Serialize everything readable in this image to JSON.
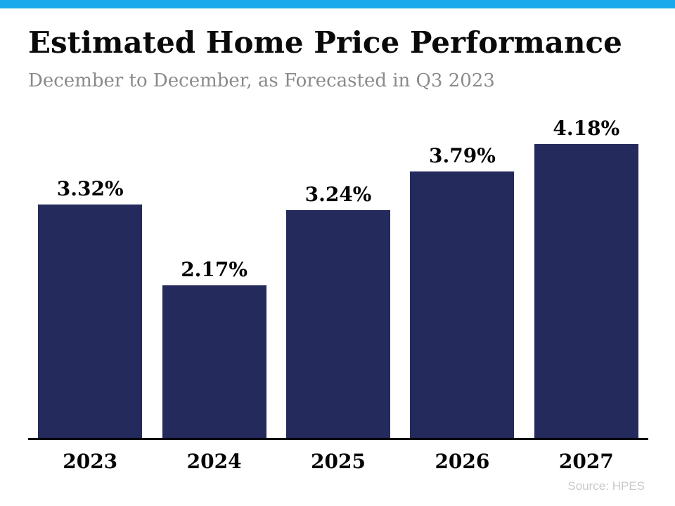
{
  "accent_color": "#18A9EC",
  "header": {
    "title": "Estimated Home Price Performance",
    "subtitle": "December to December, as Forecasted in Q3 2023"
  },
  "footer": {
    "source": "Source: HPES"
  },
  "chart_data": {
    "type": "bar",
    "title": "Estimated Home Price Performance",
    "subtitle": "December to December, as Forecasted in Q3 2023",
    "categories": [
      "2023",
      "2024",
      "2025",
      "2026",
      "2027"
    ],
    "values": [
      3.32,
      2.17,
      3.24,
      3.79,
      4.18
    ],
    "value_labels": [
      "3.32%",
      "2.17%",
      "3.24%",
      "3.79%",
      "4.18%"
    ],
    "xlabel": "",
    "ylabel": "",
    "ylim": [
      0,
      4.6
    ],
    "bar_color": "#252A5D",
    "axis_color": "#000000",
    "grid": false,
    "legend": false,
    "data_labels_position": "above-bars",
    "source": "Source: HPES"
  }
}
